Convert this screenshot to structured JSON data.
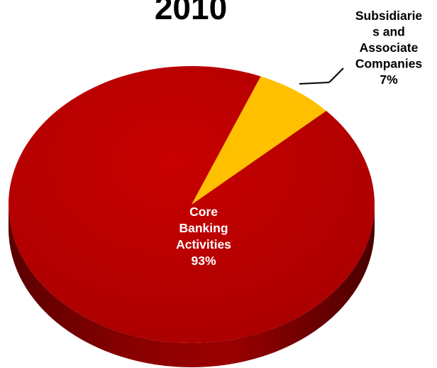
{
  "chart_data": {
    "type": "pie",
    "title": "2010",
    "slices": [
      {
        "label_lines": [
          "Subsidiarie",
          "s and",
          "Associate",
          "Companies"
        ],
        "value": 7,
        "value_label": "7%",
        "color": "#FFC000",
        "label_color": "#000000"
      },
      {
        "label_lines": [
          "Core",
          "Banking",
          "Activities"
        ],
        "value": 93,
        "value_label": "93%",
        "color": "#C00000",
        "label_color": "#FFFFFF"
      }
    ],
    "three_d": true,
    "legend": "none"
  }
}
